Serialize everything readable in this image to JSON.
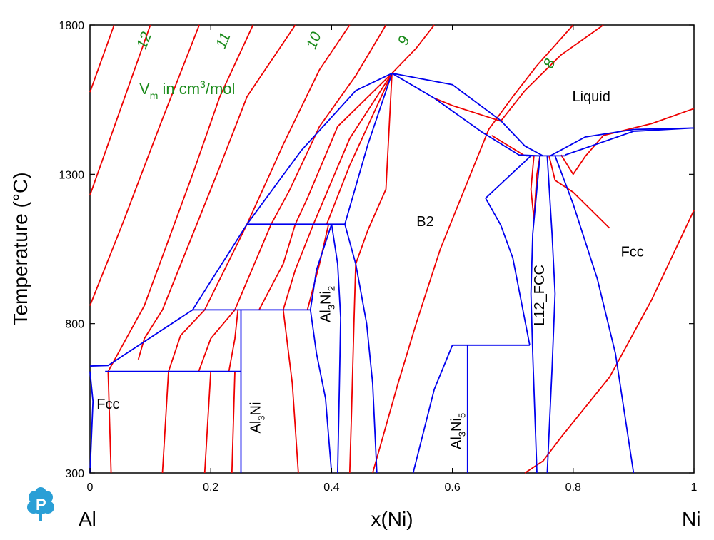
{
  "chart_data": {
    "type": "line",
    "xlabel": "x(Ni)",
    "ylabel": "Temperature (°C)",
    "xlim": [
      0,
      1
    ],
    "ylim": [
      300,
      1800
    ],
    "x_ticks": [
      "0",
      "0.2",
      "0.4",
      "0.6",
      "0.8",
      "1"
    ],
    "y_ticks": [
      "300",
      "800",
      "1300",
      "1800"
    ],
    "element_left": "Al",
    "element_right": "Ni",
    "colors": {
      "phase": "#0000ee",
      "isochore": "#ee0000",
      "annotation": "#1a8a1a"
    },
    "annotation": {
      "prefix": "V",
      "sub": "m",
      "mid": " in cm",
      "sup": "3",
      "suffix": "/mol"
    },
    "region_labels": [
      {
        "text": "Liquid",
        "x": 0.83,
        "y": 1545
      },
      {
        "text": "B2",
        "x": 0.555,
        "y": 1127
      },
      {
        "text": "Fcc",
        "x": 0.898,
        "y": 1025
      },
      {
        "text": "Fcc",
        "x": 0.03,
        "y": 515
      }
    ],
    "compound_labels": [
      {
        "id": "al3ni2",
        "main": "Al",
        "sub1": "3",
        "mid": "Ni",
        "sub2": "2",
        "x": 0.398,
        "y": 865
      },
      {
        "id": "al3ni",
        "main": "Al",
        "sub1": "3",
        "mid": "Ni",
        "sub2": "",
        "x": 0.282,
        "y": 485
      },
      {
        "id": "al3ni5",
        "main": "Al",
        "sub1": "3",
        "mid": "Ni",
        "sub2": "5",
        "x": 0.614,
        "y": 440
      },
      {
        "id": "l12",
        "main": "L12_FCC",
        "sub1": "",
        "mid": "",
        "sub2": "",
        "x": 0.752,
        "y": 895
      }
    ],
    "isochore_labels": [
      {
        "text": "12",
        "x": 0.097,
        "y": 1742
      },
      {
        "text": "11",
        "x": 0.228,
        "y": 1742
      },
      {
        "text": "10",
        "x": 0.378,
        "y": 1742
      },
      {
        "text": "9",
        "x": 0.527,
        "y": 1742
      },
      {
        "text": "8",
        "x": 0.768,
        "y": 1665
      }
    ],
    "phase_boundaries": [
      {
        "name": "liquidus-al-side",
        "points": [
          [
            0,
            658
          ],
          [
            0.03,
            660
          ],
          [
            0.17,
            846
          ],
          [
            0.26,
            1133
          ],
          [
            0.35,
            1380
          ],
          [
            0.44,
            1580
          ],
          [
            0.5,
            1638
          ]
        ]
      },
      {
        "name": "liquidus-b2-right",
        "points": [
          [
            0.5,
            1638
          ],
          [
            0.6,
            1600
          ],
          [
            0.68,
            1480
          ],
          [
            0.72,
            1395
          ],
          [
            0.75,
            1362
          ]
        ]
      },
      {
        "name": "b2-liquid-solidus",
        "points": [
          [
            0.5,
            1638
          ],
          [
            0.57,
            1555
          ],
          [
            0.65,
            1440
          ],
          [
            0.71,
            1365
          ],
          [
            0.745,
            1362
          ]
        ]
      },
      {
        "name": "liquidus-ni-side",
        "points": [
          [
            0.762,
            1362
          ],
          [
            0.82,
            1425
          ],
          [
            0.9,
            1450
          ],
          [
            1.0,
            1455
          ]
        ]
      },
      {
        "name": "fcc-solidus-ni",
        "points": [
          [
            0.787,
            1365
          ],
          [
            0.83,
            1395
          ],
          [
            0.9,
            1444
          ],
          [
            1.0,
            1455
          ]
        ]
      },
      {
        "name": "b2-left-upper",
        "points": [
          [
            0.422,
            1133
          ],
          [
            0.46,
            1400
          ],
          [
            0.5,
            1638
          ]
        ]
      },
      {
        "name": "b2-left-lower",
        "points": [
          [
            0.422,
            1133
          ],
          [
            0.44,
            1000
          ],
          [
            0.458,
            800
          ],
          [
            0.468,
            600
          ],
          [
            0.475,
            300
          ]
        ]
      },
      {
        "name": "b2-right",
        "points": [
          [
            0.728,
            728
          ],
          [
            0.7,
            1020
          ],
          [
            0.68,
            1130
          ],
          [
            0.655,
            1220
          ],
          [
            0.73,
            1362
          ]
        ]
      },
      {
        "name": "b2-right-lower",
        "points": [
          [
            0.6,
            728
          ],
          [
            0.57,
            580
          ],
          [
            0.535,
            300
          ]
        ]
      },
      {
        "name": "al3ni2-left-boundary",
        "points": [
          [
            0.4,
            1133
          ],
          [
            0.375,
            980
          ],
          [
            0.365,
            846
          ]
        ]
      },
      {
        "name": "al3ni2-right-top",
        "points": [
          [
            0.4,
            1133
          ],
          [
            0.41,
            1000
          ],
          [
            0.415,
            820
          ],
          [
            0.413,
            600
          ],
          [
            0.41,
            300
          ]
        ]
      },
      {
        "name": "al3ni2-left-bottom",
        "points": [
          [
            0.365,
            846
          ],
          [
            0.375,
            700
          ],
          [
            0.39,
            550
          ],
          [
            0.4,
            300
          ]
        ]
      },
      {
        "name": "l12-left",
        "points": [
          [
            0.745,
            1362
          ],
          [
            0.733,
            1100
          ],
          [
            0.73,
            900
          ],
          [
            0.733,
            700
          ],
          [
            0.74,
            300
          ]
        ]
      },
      {
        "name": "l12-right",
        "points": [
          [
            0.757,
            1362
          ],
          [
            0.765,
            1100
          ],
          [
            0.77,
            900
          ],
          [
            0.765,
            650
          ],
          [
            0.757,
            300
          ]
        ]
      },
      {
        "name": "fcc-left",
        "points": [
          [
            0.77,
            1362
          ],
          [
            0.8,
            1200
          ],
          [
            0.84,
            950
          ],
          [
            0.87,
            700
          ],
          [
            0.9,
            300
          ]
        ]
      },
      {
        "name": "peritectic-1133",
        "points": [
          [
            0.26,
            1133
          ],
          [
            0.422,
            1133
          ]
        ]
      },
      {
        "name": "peritectic-846",
        "points": [
          [
            0.17,
            846
          ],
          [
            0.365,
            846
          ]
        ]
      },
      {
        "name": "eutectic-640",
        "points": [
          [
            0.025,
            640
          ],
          [
            0.25,
            640
          ]
        ]
      },
      {
        "name": "al3ni5-top",
        "points": [
          [
            0.6,
            728
          ],
          [
            0.728,
            728
          ]
        ]
      },
      {
        "name": "al3ni-line",
        "points": [
          [
            0.25,
            846
          ],
          [
            0.25,
            300
          ]
        ]
      },
      {
        "name": "al3ni5-line",
        "points": [
          [
            0.625,
            728
          ],
          [
            0.625,
            300
          ]
        ]
      },
      {
        "name": "l12-peritectic",
        "points": [
          [
            0.722,
            1362
          ],
          [
            0.787,
            1362
          ]
        ]
      },
      {
        "name": "fcc-al-solvus",
        "points": [
          [
            0.0,
            640
          ],
          [
            0.005,
            540
          ],
          [
            0.0,
            300
          ]
        ]
      }
    ],
    "isochores": [
      {
        "label": "",
        "points": [
          [
            0.0,
            1575
          ],
          [
            0.04,
            1800
          ]
        ]
      },
      {
        "label": "12",
        "points": [
          [
            0.0,
            1230
          ],
          [
            0.1,
            1800
          ]
        ]
      },
      {
        "label": "11",
        "points": [
          [
            0.0,
            860
          ],
          [
            0.055,
            1140
          ],
          [
            0.117,
            1470
          ],
          [
            0.181,
            1800
          ]
        ]
      },
      {
        "label": "10",
        "points": [
          [
            0.03,
            640
          ],
          [
            0.09,
            860
          ],
          [
            0.17,
            1300
          ],
          [
            0.215,
            1560
          ],
          [
            0.27,
            1800
          ]
        ]
      },
      {
        "label": "",
        "points": [
          [
            0.03,
            640
          ],
          [
            0.035,
            300
          ]
        ]
      },
      {
        "label": "",
        "points": [
          [
            0.08,
            680
          ],
          [
            0.09,
            750
          ],
          [
            0.12,
            846
          ],
          [
            0.21,
            1300
          ],
          [
            0.26,
            1560
          ],
          [
            0.34,
            1800
          ]
        ]
      },
      {
        "label": "",
        "points": [
          [
            0.13,
            640
          ],
          [
            0.12,
            300
          ]
        ]
      },
      {
        "label": "",
        "points": [
          [
            0.13,
            640
          ],
          [
            0.15,
            760
          ],
          [
            0.19,
            846
          ],
          [
            0.26,
            1133
          ],
          [
            0.3,
            1310
          ],
          [
            0.32,
            1400
          ],
          [
            0.38,
            1650
          ],
          [
            0.43,
            1800
          ]
        ]
      },
      {
        "label": "",
        "points": [
          [
            0.18,
            640
          ],
          [
            0.2,
            750
          ],
          [
            0.24,
            846
          ],
          [
            0.3,
            1133
          ],
          [
            0.33,
            1245
          ],
          [
            0.38,
            1460
          ],
          [
            0.44,
            1630
          ],
          [
            0.49,
            1800
          ]
        ]
      },
      {
        "label": "",
        "points": [
          [
            0.2,
            640
          ],
          [
            0.19,
            300
          ]
        ]
      },
      {
        "label": "",
        "points": [
          [
            0.23,
            640
          ],
          [
            0.24,
            750
          ],
          [
            0.245,
            846
          ]
        ]
      },
      {
        "label": "",
        "points": [
          [
            0.24,
            640
          ],
          [
            0.235,
            300
          ]
        ]
      },
      {
        "label": "",
        "points": [
          [
            0.28,
            846
          ],
          [
            0.32,
            1000
          ],
          [
            0.34,
            1133
          ],
          [
            0.36,
            1220
          ],
          [
            0.41,
            1460
          ],
          [
            0.5,
            1638
          ]
        ]
      },
      {
        "label": "",
        "points": [
          [
            0.32,
            846
          ],
          [
            0.34,
            980
          ],
          [
            0.37,
            1133
          ],
          [
            0.43,
            1420
          ],
          [
            0.5,
            1638
          ]
        ]
      },
      {
        "label": "",
        "points": [
          [
            0.32,
            846
          ],
          [
            0.335,
            600
          ],
          [
            0.345,
            300
          ]
        ]
      },
      {
        "label": "",
        "points": [
          [
            0.36,
            846
          ],
          [
            0.38,
            1000
          ],
          [
            0.395,
            1133
          ]
        ]
      },
      {
        "label": "",
        "points": [
          [
            0.392,
            1133
          ],
          [
            0.43,
            1330
          ],
          [
            0.5,
            1638
          ]
        ]
      },
      {
        "label": "9",
        "points": [
          [
            0.5,
            1638
          ],
          [
            0.54,
            1722
          ],
          [
            0.57,
            1800
          ]
        ]
      },
      {
        "label": "",
        "points": [
          [
            0.44,
            1000
          ],
          [
            0.437,
            800
          ],
          [
            0.433,
            500
          ],
          [
            0.43,
            300
          ]
        ]
      },
      {
        "label": "",
        "points": [
          [
            0.44,
            1000
          ],
          [
            0.46,
            1113
          ],
          [
            0.49,
            1250
          ],
          [
            0.5,
            1638
          ]
        ]
      },
      {
        "label": "",
        "points": [
          [
            0.468,
            300
          ],
          [
            0.51,
            600
          ],
          [
            0.54,
            800
          ],
          [
            0.58,
            1050
          ],
          [
            0.63,
            1300
          ],
          [
            0.66,
            1450
          ],
          [
            0.7,
            1560
          ],
          [
            0.74,
            1664
          ],
          [
            0.8,
            1800
          ]
        ]
      },
      {
        "label": "",
        "points": [
          [
            0.57,
            1555
          ],
          [
            0.6,
            1530
          ],
          [
            0.68,
            1478
          ]
        ]
      },
      {
        "label": "8",
        "points": [
          [
            0.68,
            1478
          ],
          [
            0.72,
            1580
          ],
          [
            0.78,
            1700
          ],
          [
            0.85,
            1800
          ]
        ]
      },
      {
        "label": "",
        "points": [
          [
            0.665,
            1430
          ],
          [
            0.72,
            1362
          ]
        ]
      },
      {
        "label": "",
        "points": [
          [
            0.735,
            1362
          ],
          [
            0.73,
            1250
          ],
          [
            0.735,
            1150
          ],
          [
            0.74,
            1300
          ],
          [
            0.745,
            1362
          ]
        ]
      },
      {
        "label": "",
        "points": [
          [
            0.78,
            1365
          ],
          [
            0.8,
            1300
          ],
          [
            0.82,
            1360
          ],
          [
            0.85,
            1430
          ],
          [
            0.93,
            1470
          ],
          [
            1.0,
            1520
          ]
        ]
      },
      {
        "label": "",
        "points": [
          [
            0.76,
            1362
          ],
          [
            0.77,
            1280
          ],
          [
            0.8,
            1240
          ],
          [
            0.86,
            1120
          ]
        ]
      },
      {
        "label": "",
        "points": [
          [
            0.72,
            300
          ],
          [
            0.75,
            340
          ],
          [
            0.78,
            420
          ],
          [
            0.86,
            620
          ],
          [
            0.93,
            880
          ],
          [
            1.0,
            1180
          ]
        ]
      }
    ]
  }
}
